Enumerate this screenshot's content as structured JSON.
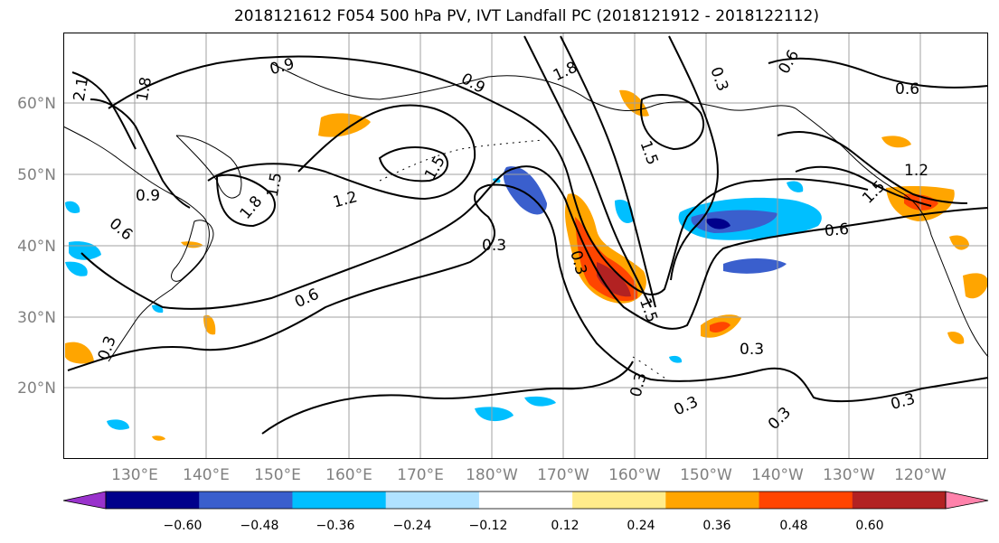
{
  "title": "2018121612 F054 500 hPa PV, IVT Landfall PC (2018121912 - 2018122112)",
  "lat_labels": [
    "60°N",
    "50°N",
    "40°N",
    "30°N",
    "20°N"
  ],
  "lon_labels": [
    "130°E",
    "140°E",
    "150°E",
    "160°E",
    "170°E",
    "180°W",
    "170°W",
    "160°W",
    "150°W",
    "140°W",
    "130°W",
    "120°W"
  ],
  "colorbar": {
    "colors": [
      "#9932cc",
      "#00008b",
      "#3a5fcd",
      "#00bfff",
      "#b0e2ff",
      "#ffffff",
      "#ffec8b",
      "#ffa500",
      "#ff4500",
      "#b22222",
      "#ff82ab"
    ],
    "tick_labels": [
      "−0.60",
      "−0.48",
      "−0.36",
      "−0.24",
      "−0.12",
      "0.12",
      "0.24",
      "0.36",
      "0.48",
      "0.60"
    ]
  },
  "contour_labels": [
    "0.9",
    "1.8",
    "0.9",
    "0.3",
    "0.6",
    "0.6",
    "2.1",
    "1.8",
    "1.5",
    "0.9",
    "0.6",
    "1.8",
    "1.5",
    "1.2",
    "0.3",
    "0.6",
    "0.3",
    "1.5",
    "0.6",
    "1.5",
    "0.3",
    "0.3",
    "0.3",
    "0.3",
    "0.3",
    "0.3",
    "1.5",
    "1.2"
  ]
}
